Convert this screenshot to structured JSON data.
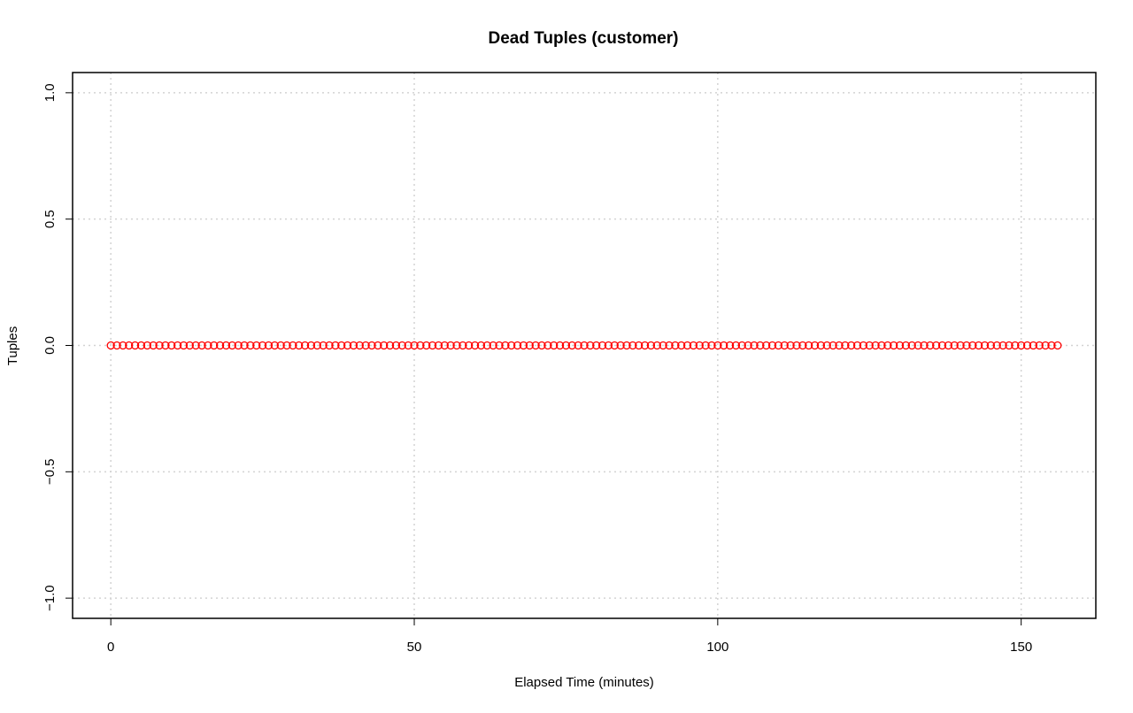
{
  "chart_data": {
    "type": "scatter",
    "title": "Dead Tuples (customer)",
    "xlabel": "Elapsed Time (minutes)",
    "ylabel": "Tuples",
    "xlim": [
      -6.3,
      162.3
    ],
    "ylim": [
      -1.08,
      1.08
    ],
    "x_ticks": [
      0,
      50,
      100,
      150
    ],
    "y_ticks": [
      -1.0,
      -0.5,
      0.0,
      0.5,
      1.0
    ],
    "x_tick_labels": [
      "0",
      "50",
      "100",
      "150"
    ],
    "y_tick_labels": [
      "−1.0",
      "−0.5",
      "0.0",
      "0.5",
      "1.0"
    ],
    "grid": true,
    "legend": "none",
    "series": [
      {
        "color": "#ff0000",
        "marker": "open-circle",
        "x_start": 0,
        "x_end": 156,
        "x_step": 1,
        "y": 0
      }
    ]
  }
}
